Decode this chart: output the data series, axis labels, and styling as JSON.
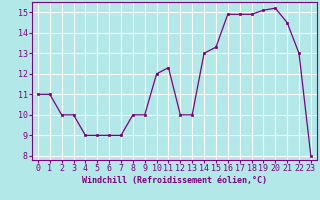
{
  "x": [
    0,
    1,
    2,
    3,
    4,
    5,
    6,
    7,
    8,
    9,
    10,
    11,
    12,
    13,
    14,
    15,
    16,
    17,
    18,
    19,
    20,
    21,
    22,
    23
  ],
  "y": [
    11,
    11,
    10,
    10,
    9,
    9,
    9,
    9,
    10,
    10,
    12,
    12.3,
    10,
    10,
    13,
    13.3,
    14.9,
    14.9,
    14.9,
    15.1,
    15.2,
    14.5,
    13,
    8
  ],
  "line_color": "#800080",
  "marker_color": "#800080",
  "background_color": "#b2e8e8",
  "grid_color": "#ffffff",
  "xlabel": "Windchill (Refroidissement éolien,°C)",
  "xlabel_fontsize": 6.0,
  "tick_fontsize": 6.0,
  "xlim": [
    -0.5,
    23.5
  ],
  "ylim": [
    7.8,
    15.5
  ],
  "yticks": [
    8,
    9,
    10,
    11,
    12,
    13,
    14,
    15
  ],
  "xticks": [
    0,
    1,
    2,
    3,
    4,
    5,
    6,
    7,
    8,
    9,
    10,
    11,
    12,
    13,
    14,
    15,
    16,
    17,
    18,
    19,
    20,
    21,
    22,
    23
  ]
}
